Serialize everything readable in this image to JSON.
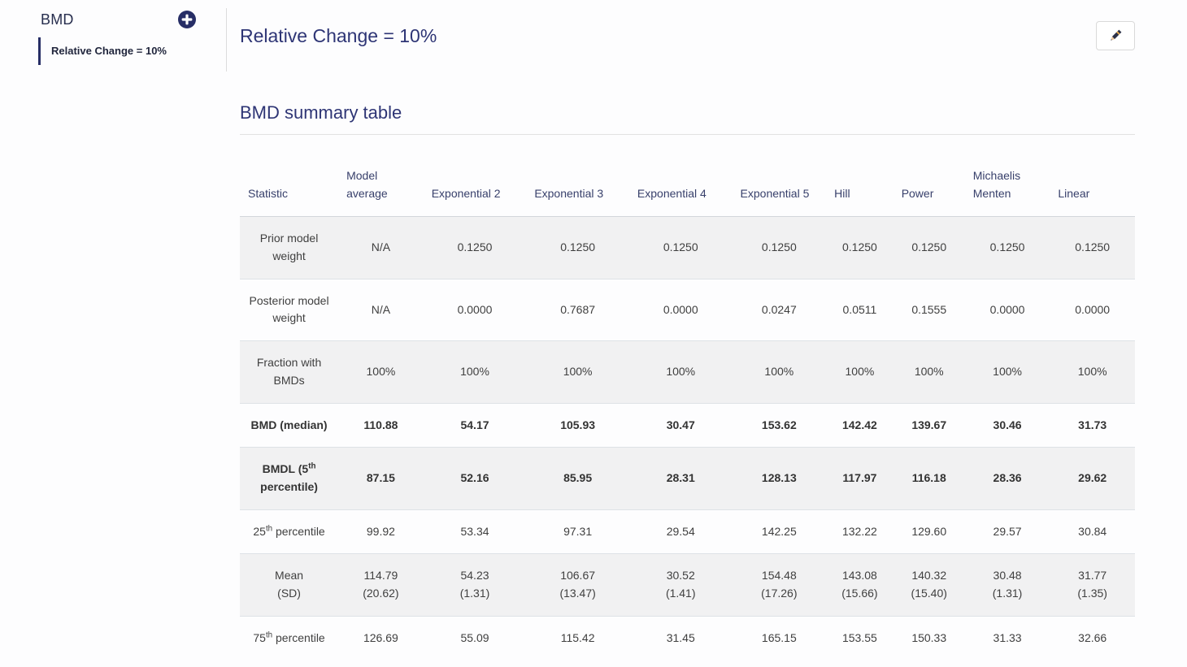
{
  "colors": {
    "accent": "#272e66",
    "heading": "#2e3575",
    "table_header_text": "#38406b",
    "row_stripe": "#f1f1f2",
    "row_border": "#dee2e6"
  },
  "icons": {
    "add": "plus-icon",
    "edit": "pencil-icon"
  },
  "sidebar": {
    "title": "BMD",
    "items": [
      {
        "label": "Relative Change = 10%",
        "active": true
      }
    ]
  },
  "header": {
    "title": "Relative Change = 10%"
  },
  "section": {
    "title": "BMD summary table"
  },
  "table": {
    "columns": [
      "Statistic",
      "Model average",
      "Exponential 2",
      "Exponential 3",
      "Exponential 4",
      "Exponential 5",
      "Hill",
      "Power",
      "Michaelis Menten",
      "Linear"
    ],
    "col_widths": [
      "11%",
      "9.5%",
      "11.5%",
      "11.5%",
      "11.5%",
      "10.5%",
      "7.5%",
      "8%",
      "9.5%",
      "9.5%"
    ],
    "rows": [
      {
        "label": [
          {
            "t": "Prior model weight"
          }
        ],
        "bold": false,
        "cells": [
          [
            "N/A"
          ],
          [
            "0.1250"
          ],
          [
            "0.1250"
          ],
          [
            "0.1250"
          ],
          [
            "0.1250"
          ],
          [
            "0.1250"
          ],
          [
            "0.1250"
          ],
          [
            "0.1250"
          ],
          [
            "0.1250"
          ]
        ]
      },
      {
        "label": [
          {
            "t": "Posterior model weight"
          }
        ],
        "bold": false,
        "cells": [
          [
            "N/A"
          ],
          [
            "0.0000"
          ],
          [
            "0.7687"
          ],
          [
            "0.0000"
          ],
          [
            "0.0247"
          ],
          [
            "0.0511"
          ],
          [
            "0.1555"
          ],
          [
            "0.0000"
          ],
          [
            "0.0000"
          ]
        ]
      },
      {
        "label": [
          {
            "t": "Fraction with BMDs"
          }
        ],
        "bold": false,
        "cells": [
          [
            "100%"
          ],
          [
            "100%"
          ],
          [
            "100%"
          ],
          [
            "100%"
          ],
          [
            "100%"
          ],
          [
            "100%"
          ],
          [
            "100%"
          ],
          [
            "100%"
          ],
          [
            "100%"
          ]
        ]
      },
      {
        "label": [
          {
            "t": "BMD (median)"
          }
        ],
        "bold": true,
        "cells": [
          [
            "110.88"
          ],
          [
            "54.17"
          ],
          [
            "105.93"
          ],
          [
            "30.47"
          ],
          [
            "153.62"
          ],
          [
            "142.42"
          ],
          [
            "139.67"
          ],
          [
            "30.46"
          ],
          [
            "31.73"
          ]
        ]
      },
      {
        "label": [
          {
            "t": "BMDL (5"
          },
          {
            "sup": "th"
          },
          {
            "t": " percentile)"
          }
        ],
        "bold": true,
        "cells": [
          [
            "87.15"
          ],
          [
            "52.16"
          ],
          [
            "85.95"
          ],
          [
            "28.31"
          ],
          [
            "128.13"
          ],
          [
            "117.97"
          ],
          [
            "116.18"
          ],
          [
            "28.36"
          ],
          [
            "29.62"
          ]
        ]
      },
      {
        "label": [
          {
            "t": "25"
          },
          {
            "sup": "th"
          },
          {
            "t": " percentile"
          }
        ],
        "bold": false,
        "cells": [
          [
            "99.92"
          ],
          [
            "53.34"
          ],
          [
            "97.31"
          ],
          [
            "29.54"
          ],
          [
            "142.25"
          ],
          [
            "132.22"
          ],
          [
            "129.60"
          ],
          [
            "29.57"
          ],
          [
            "30.84"
          ]
        ]
      },
      {
        "label": [
          {
            "t": "Mean"
          },
          {
            "br": true
          },
          {
            "t": "(SD)"
          }
        ],
        "bold": false,
        "cells": [
          [
            "114.79",
            "(20.62)"
          ],
          [
            "54.23",
            "(1.31)"
          ],
          [
            "106.67",
            "(13.47)"
          ],
          [
            "30.52",
            "(1.41)"
          ],
          [
            "154.48",
            "(17.26)"
          ],
          [
            "143.08",
            "(15.66)"
          ],
          [
            "140.32",
            "(15.40)"
          ],
          [
            "30.48",
            "(1.31)"
          ],
          [
            "31.77",
            "(1.35)"
          ]
        ]
      },
      {
        "label": [
          {
            "t": "75"
          },
          {
            "sup": "th"
          },
          {
            "t": " percentile"
          }
        ],
        "bold": false,
        "cells": [
          [
            "126.69"
          ],
          [
            "55.09"
          ],
          [
            "115.42"
          ],
          [
            "31.45"
          ],
          [
            "165.15"
          ],
          [
            "153.55"
          ],
          [
            "150.33"
          ],
          [
            "31.33"
          ],
          [
            "32.66"
          ]
        ]
      }
    ]
  }
}
